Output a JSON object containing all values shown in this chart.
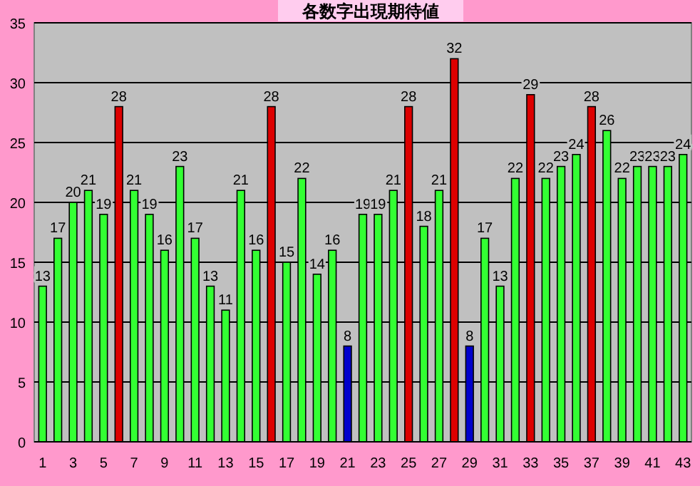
{
  "chart_data": {
    "type": "bar",
    "title": "各数字出現期待値",
    "categories": [
      "1",
      null,
      "3",
      null,
      "5",
      null,
      "7",
      null,
      "9",
      null,
      "11",
      null,
      "13",
      null,
      "15",
      null,
      "17",
      null,
      "19",
      null,
      "21",
      null,
      "23",
      null,
      "25",
      null,
      "27",
      null,
      "29",
      null,
      "31",
      null,
      "33",
      null,
      "35",
      null,
      "37",
      null,
      "39",
      null,
      "41",
      null,
      "43"
    ],
    "values": [
      13,
      17,
      20,
      21,
      19,
      28,
      21,
      19,
      16,
      23,
      17,
      13,
      11,
      21,
      16,
      28,
      15,
      22,
      14,
      16,
      8,
      19,
      19,
      21,
      28,
      18,
      21,
      32,
      8,
      17,
      13,
      22,
      29,
      22,
      23,
      24,
      28,
      26,
      22,
      23,
      23,
      23,
      24
    ],
    "colors": [
      "#33ff33",
      "#33ff33",
      "#33ff33",
      "#33ff33",
      "#33ff33",
      "#dd0000",
      "#33ff33",
      "#33ff33",
      "#33ff33",
      "#33ff33",
      "#33ff33",
      "#33ff33",
      "#33ff33",
      "#33ff33",
      "#33ff33",
      "#dd0000",
      "#33ff33",
      "#33ff33",
      "#33ff33",
      "#33ff33",
      "#0000cc",
      "#33ff33",
      "#33ff33",
      "#33ff33",
      "#dd0000",
      "#33ff33",
      "#33ff33",
      "#dd0000",
      "#0000cc",
      "#33ff33",
      "#33ff33",
      "#33ff33",
      "#dd0000",
      "#33ff33",
      "#33ff33",
      "#33ff33",
      "#dd0000",
      "#33ff33",
      "#33ff33",
      "#33ff33",
      "#33ff33",
      "#33ff33",
      "#33ff33"
    ],
    "ylim": [
      0,
      35
    ],
    "yticks": [
      0,
      5,
      10,
      15,
      20,
      25,
      30,
      35
    ],
    "grid": "y",
    "data_labels": true
  }
}
